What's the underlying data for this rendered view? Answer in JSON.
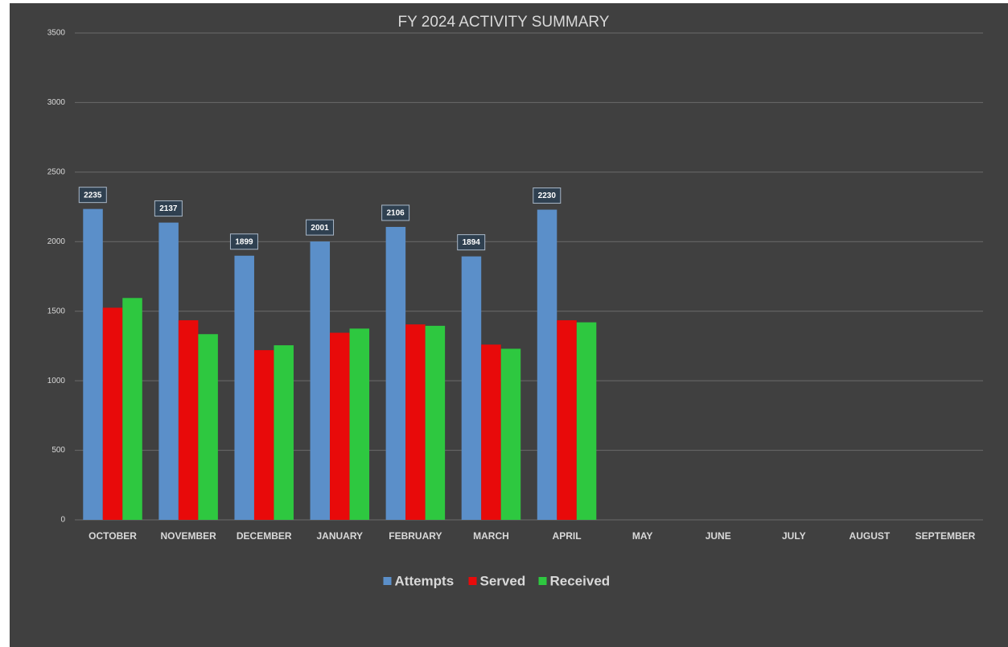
{
  "chart_data": {
    "type": "bar",
    "title": "FY 2024 ACTIVITY SUMMARY",
    "categories": [
      "OCTOBER",
      "NOVEMBER",
      "DECEMBER",
      "JANUARY",
      "FEBRUARY",
      "MARCH",
      "APRIL",
      "MAY",
      "JUNE",
      "JULY",
      "AUGUST",
      "SEPTEMBER"
    ],
    "series": [
      {
        "name": "Attempts",
        "color": "#5b8fc9",
        "values": [
          2235,
          2137,
          1899,
          2001,
          2106,
          1894,
          2230,
          null,
          null,
          null,
          null,
          null
        ],
        "data_labels": true
      },
      {
        "name": "Served",
        "color": "#e80a0a",
        "values": [
          1525,
          1435,
          1220,
          1345,
          1405,
          1260,
          1435,
          null,
          null,
          null,
          null,
          null
        ]
      },
      {
        "name": "Received",
        "color": "#2ec840",
        "values": [
          1595,
          1335,
          1255,
          1375,
          1395,
          1230,
          1420,
          null,
          null,
          null,
          null,
          null
        ]
      }
    ],
    "ylim": [
      0,
      3500
    ],
    "yticks": [
      0,
      500,
      1000,
      1500,
      2000,
      2500,
      3000,
      3500
    ],
    "grid": true,
    "legend": "bottom"
  }
}
